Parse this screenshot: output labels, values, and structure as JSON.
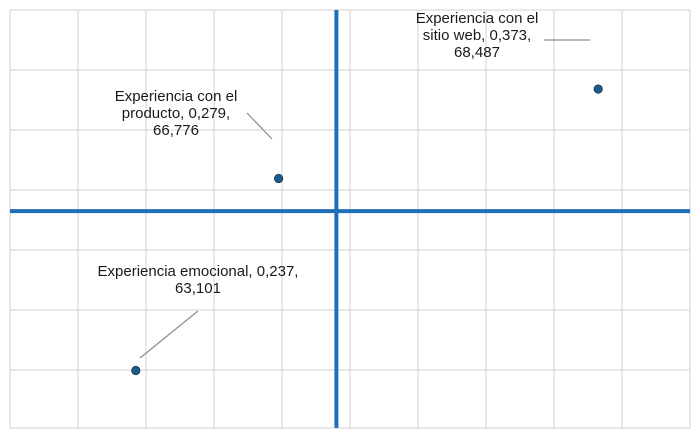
{
  "chart_data": {
    "type": "scatter",
    "title": "",
    "xlabel": "",
    "ylabel": "",
    "grid": true,
    "xlim": [
      0.2,
      0.4
    ],
    "ylim": [
      62,
      70
    ],
    "quadrant_lines": {
      "x": 0.296,
      "y": 66.15
    },
    "points": [
      {
        "name": "Experiencia con el sitio web",
        "x": 0.373,
        "y": 68.487,
        "label_lines": [
          "Experiencia con el",
          "sitio web, 0,373,",
          "68,487"
        ]
      },
      {
        "name": "Experiencia con el producto",
        "x": 0.279,
        "y": 66.776,
        "label_lines": [
          "Experiencia con el",
          "producto, 0,279,",
          "66,776"
        ]
      },
      {
        "name": "Experiencia emocional",
        "x": 0.237,
        "y": 63.101,
        "label_lines": [
          "Experiencia emocional, 0,237,",
          "63,101"
        ]
      }
    ],
    "colors": {
      "point": "#1b5b86",
      "axis": "#1f6fb8",
      "grid": "#d2d2d2",
      "leader": "#8c8c8c",
      "text": "#1a1a1a"
    }
  }
}
